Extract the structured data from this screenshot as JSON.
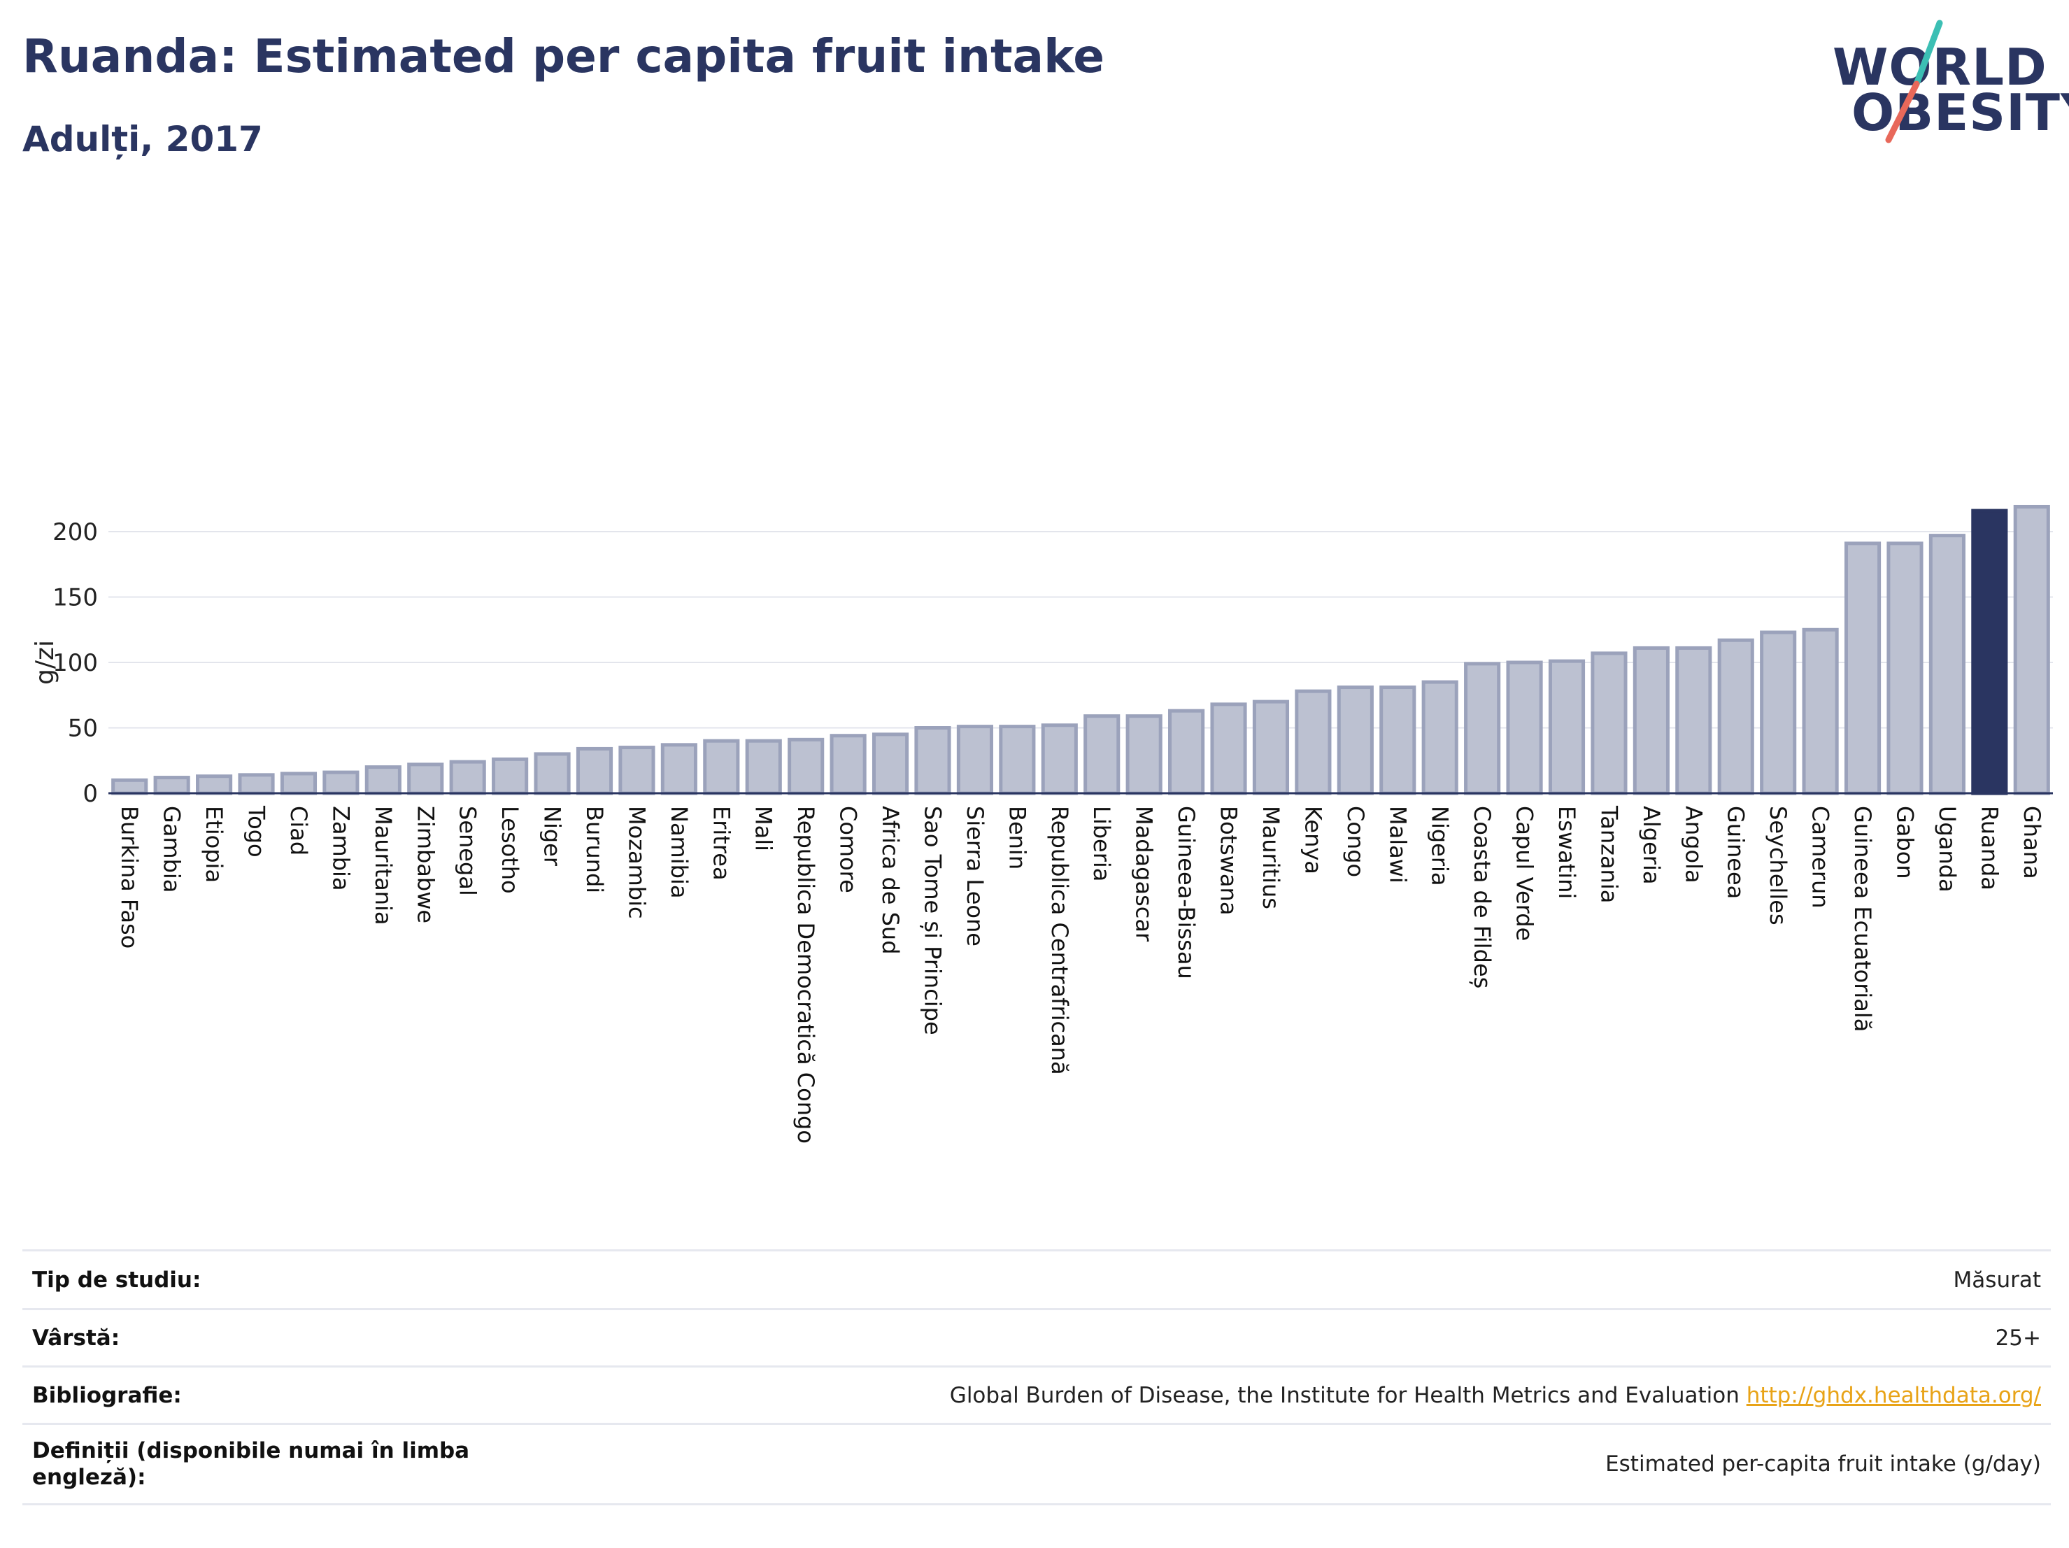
{
  "header": {
    "title": "Ruanda: Estimated per capita fruit intake",
    "subtitle": "Adulți, 2017"
  },
  "logo": {
    "line1": "WORLD",
    "line2": "OBESITY",
    "slash_top_color": "#3cbfb4",
    "slash_bottom_color": "#e8685a"
  },
  "colors": {
    "bar_fill": "#bcc1d1",
    "bar_stroke": "#9ba2bb",
    "highlight": "#2a3561",
    "grid": "#e3e5ec",
    "axis": "#2a3561"
  },
  "chart_data": {
    "type": "bar",
    "ylabel": "g/zi",
    "ylim": [
      0,
      222
    ],
    "yticks": [
      0,
      50,
      100,
      150,
      200
    ],
    "grid": true,
    "highlight": "Ruanda",
    "categories": [
      "Burkina Faso",
      "Gambia",
      "Etiopia",
      "Togo",
      "Ciad",
      "Zambia",
      "Mauritania",
      "Zimbabwe",
      "Senegal",
      "Lesotho",
      "Niger",
      "Burundi",
      "Mozambic",
      "Namibia",
      "Eritrea",
      "Mali",
      "Republica Democratică Congo",
      "Comore",
      "Africa de Sud",
      "Sao Tome și Principe",
      "Sierra Leone",
      "Benin",
      "Republica Centrafricană",
      "Liberia",
      "Madagascar",
      "Guineea-Bissau",
      "Botswana",
      "Mauritius",
      "Kenya",
      "Congo",
      "Malawi",
      "Nigeria",
      "Coasta de Fildeș",
      "Capul Verde",
      "Eswatini",
      "Tanzania",
      "Algeria",
      "Angola",
      "Guineea",
      "Seychelles",
      "Camerun",
      "Guineea Ecuatorială",
      "Gabon",
      "Uganda",
      "Ruanda",
      "Ghana"
    ],
    "values": [
      10,
      12,
      13,
      14,
      15,
      16,
      20,
      22,
      24,
      26,
      30,
      34,
      35,
      37,
      40,
      40,
      41,
      44,
      45,
      50,
      51,
      51,
      52,
      59,
      59,
      63,
      68,
      70,
      78,
      81,
      81,
      85,
      99,
      100,
      101,
      107,
      111,
      111,
      117,
      123,
      125,
      191,
      191,
      197,
      216,
      219
    ]
  },
  "meta": {
    "rows": [
      {
        "label": "Tip de studiu:",
        "value": "Măsurat"
      },
      {
        "label": "Vârstă:",
        "value": "25+"
      },
      {
        "label": "Bibliografie:",
        "value": "Global Burden of Disease, the Institute for Health Metrics and Evaluation",
        "link": "http://ghdx.healthdata.org/"
      },
      {
        "label": "Definiții (disponibile numai în limba engleză):",
        "value": "Estimated per-capita fruit intake (g/day)"
      }
    ]
  }
}
